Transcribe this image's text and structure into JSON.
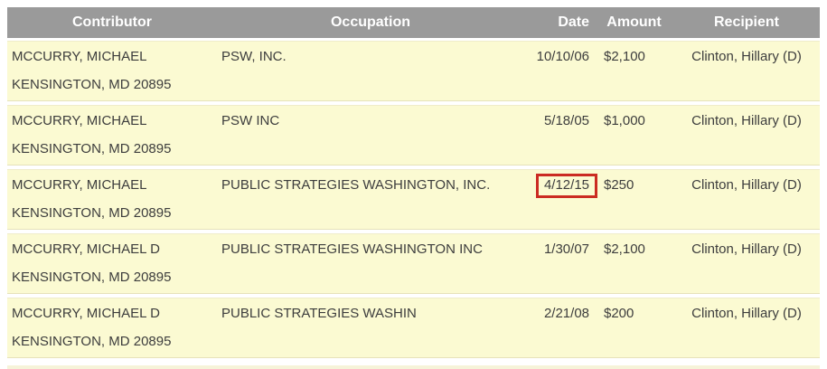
{
  "table": {
    "columns": [
      {
        "label": "Contributor"
      },
      {
        "label": "Occupation"
      },
      {
        "label": "Date"
      },
      {
        "label": "Amount"
      },
      {
        "label": "Recipient"
      }
    ],
    "rows": [
      {
        "contributor_name": "MCCURRY, MICHAEL",
        "contributor_address": "KENSINGTON, MD 20895",
        "occupation": "PSW, INC.",
        "date": "10/10/06",
        "date_highlighted": false,
        "amount": "$2,100",
        "recipient": "Clinton, Hillary (D)"
      },
      {
        "contributor_name": "MCCURRY, MICHAEL",
        "contributor_address": "KENSINGTON, MD 20895",
        "occupation": "PSW INC",
        "date": "5/18/05",
        "date_highlighted": false,
        "amount": "$1,000",
        "recipient": "Clinton, Hillary (D)"
      },
      {
        "contributor_name": "MCCURRY, MICHAEL",
        "contributor_address": "KENSINGTON, MD 20895",
        "occupation": "PUBLIC STRATEGIES WASHINGTON, INC.",
        "date": "4/12/15",
        "date_highlighted": true,
        "amount": "$250",
        "recipient": "Clinton, Hillary (D)"
      },
      {
        "contributor_name": "MCCURRY, MICHAEL D",
        "contributor_address": "KENSINGTON, MD 20895",
        "occupation": "PUBLIC STRATEGIES WASHINGTON INC",
        "date": "1/30/07",
        "date_highlighted": false,
        "amount": "$2,100",
        "recipient": "Clinton, Hillary (D)"
      },
      {
        "contributor_name": "MCCURRY, MICHAEL D",
        "contributor_address": "KENSINGTON, MD 20895",
        "occupation": "PUBLIC STRATEGIES WASHIN",
        "date": "2/21/08",
        "date_highlighted": false,
        "amount": "$200",
        "recipient": "Clinton, Hillary (D)"
      }
    ]
  },
  "colors": {
    "header_bg": "#9a9a9a",
    "header_text": "#ffffff",
    "row_bg": "#fbfad2",
    "highlight_border": "#cb2b22",
    "body_text": "#3d3d3d"
  }
}
